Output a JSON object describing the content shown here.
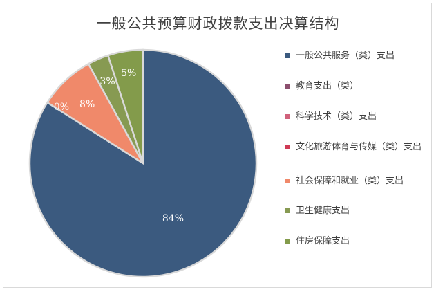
{
  "chart_data": {
    "type": "pie",
    "title": "一般公共预算财政拨款支出决算结构",
    "slices": [
      {
        "name": "一般公共服务（类）支出",
        "value": 84,
        "label": "84%",
        "color": "#3b5a7f"
      },
      {
        "name": "教育支出（类）",
        "value": 0,
        "label": "",
        "color": "#8c4f6e"
      },
      {
        "name": "科学技术（类）支出",
        "value": 0,
        "label": "",
        "color": "#d0617b"
      },
      {
        "name": "文化旅游体育与传媒（类）支出",
        "value": 0,
        "label": "",
        "color": "#cf3a55"
      },
      {
        "name": "社会保障和就业（类）支出",
        "value": 8,
        "label": "8%",
        "color": "#f0896a"
      },
      {
        "name": "卫生健康支出",
        "value": 3,
        "label": "3%",
        "color": "#879a52"
      },
      {
        "name": "住房保障支出",
        "value": 5,
        "label": "5%",
        "color": "#839b4b"
      }
    ],
    "extra_labels": [
      "0%"
    ],
    "legend_position": "right"
  }
}
